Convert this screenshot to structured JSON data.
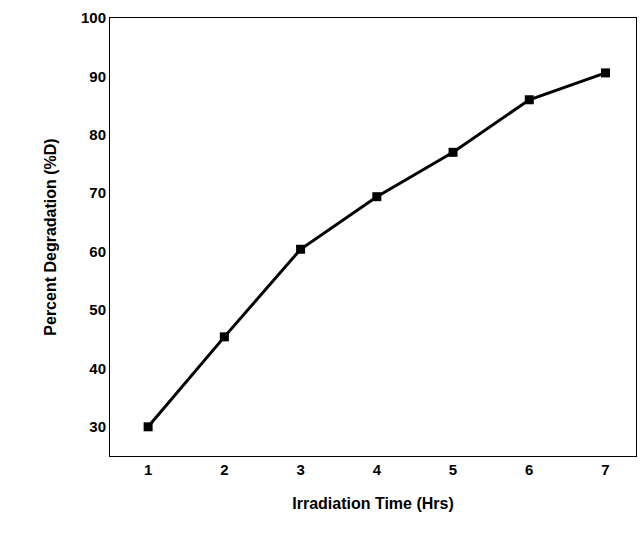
{
  "chart_data": {
    "type": "line",
    "x_label": "Irradiation Time (Hrs)",
    "y_label": "Percent Degradation (%D)",
    "x": [
      1,
      2,
      3,
      4,
      5,
      6,
      7
    ],
    "values": [
      30,
      45.4,
      60.4,
      69.4,
      77,
      86,
      90.6
    ],
    "color": "#000000",
    "marker": "square",
    "line_style": "solid",
    "xlim": [
      0.5,
      7.4
    ],
    "xticks": [
      1,
      2,
      3,
      4,
      5,
      6,
      7
    ],
    "ylim": [
      25,
      100
    ],
    "yticks": [
      30,
      40,
      50,
      60,
      70,
      80,
      90,
      100
    ],
    "grid": false
  }
}
